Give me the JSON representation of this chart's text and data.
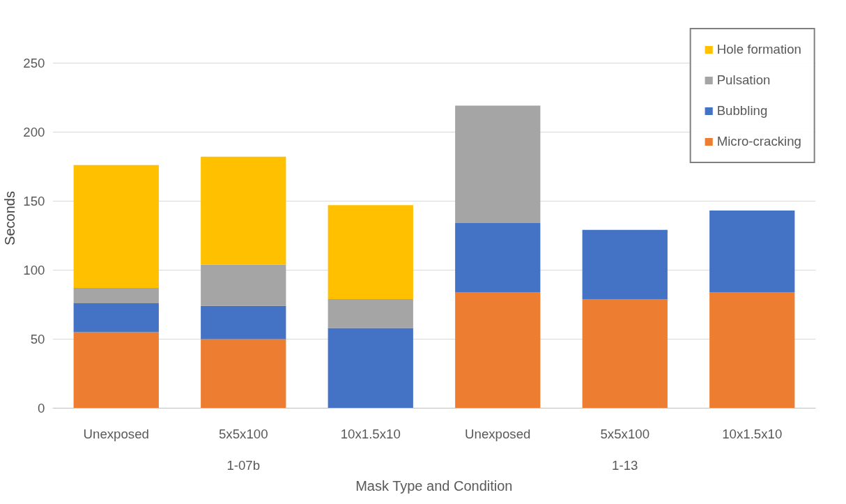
{
  "chart_data": {
    "type": "bar",
    "stacked": true,
    "xlabel": "Mask Type and Condition",
    "ylabel": "Seconds",
    "categories": [
      "Unexposed",
      "5x5x100",
      "10x1.5x10",
      "Unexposed",
      "5x5x100",
      "10x1.5x10"
    ],
    "annotations": [
      "1-07b",
      "1-13"
    ],
    "series": [
      {
        "name": "Micro-cracking",
        "color": "#ed7d31",
        "values": [
          55,
          50,
          0,
          84,
          79,
          84
        ]
      },
      {
        "name": "Bubbling",
        "color": "#4472c4",
        "values": [
          21,
          24,
          58,
          50,
          50,
          59
        ]
      },
      {
        "name": "Pulsation",
        "color": "#a5a5a5",
        "values": [
          11,
          30,
          21,
          85,
          0,
          0
        ]
      },
      {
        "name": "Hole formation",
        "color": "#ffc000",
        "values": [
          89,
          78,
          68,
          0,
          0,
          0
        ]
      }
    ],
    "ylim": [
      0,
      275
    ],
    "yticks": [
      0,
      50,
      100,
      150,
      200,
      250
    ],
    "grid": "y",
    "legend": "top right"
  }
}
